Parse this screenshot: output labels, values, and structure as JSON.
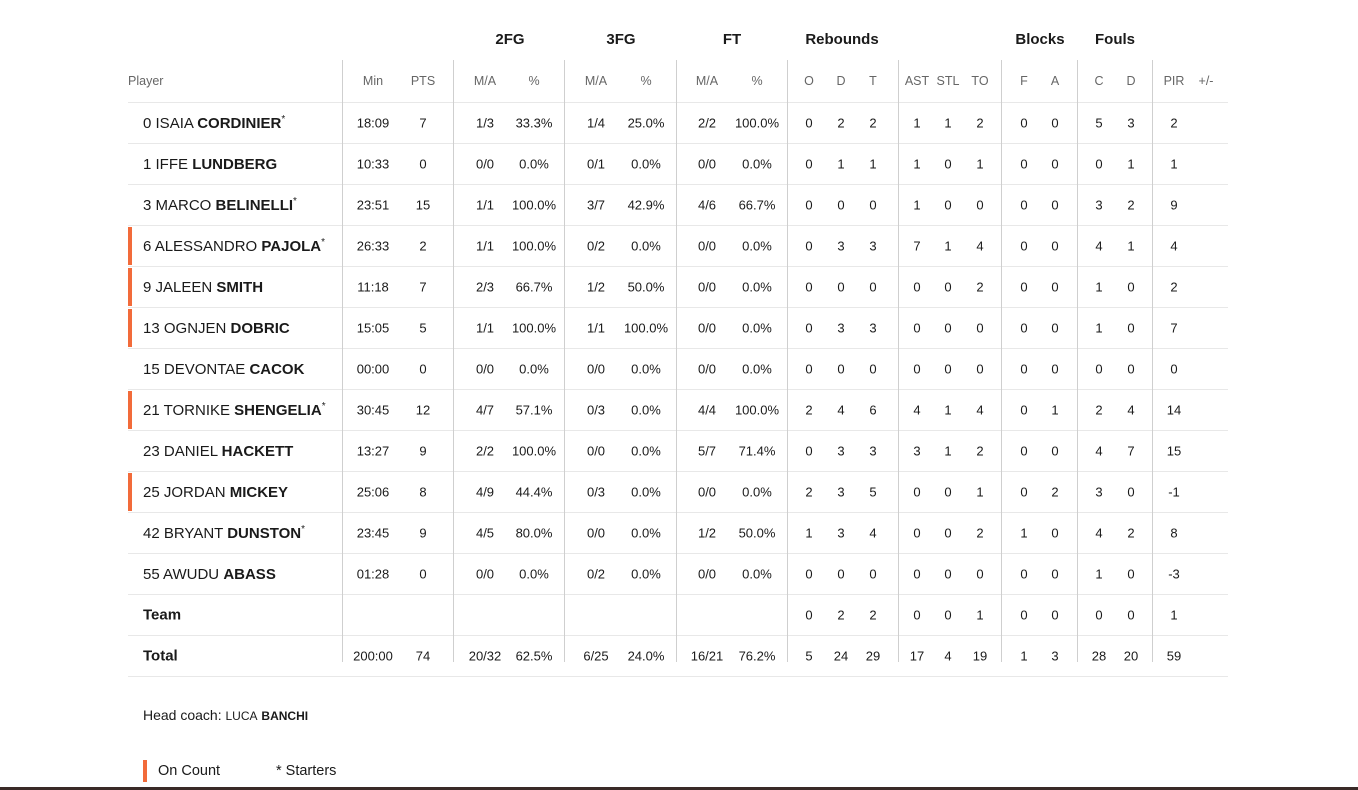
{
  "groups": {
    "fg2": "2FG",
    "fg3": "3FG",
    "ft": "FT",
    "reb": "Rebounds",
    "blocks": "Blocks",
    "fouls": "Fouls"
  },
  "headers": {
    "player": "Player",
    "min": "Min",
    "pts": "PTS",
    "fg2_ma": "M/A",
    "fg2_pct": "%",
    "fg3_ma": "M/A",
    "fg3_pct": "%",
    "ft_ma": "M/A",
    "ft_pct": "%",
    "o": "O",
    "d": "D",
    "t": "T",
    "ast": "AST",
    "stl": "STL",
    "to": "TO",
    "bf": "F",
    "ba": "A",
    "fc": "C",
    "fd": "D",
    "pir": "PIR",
    "pm": "+/-"
  },
  "players": [
    {
      "num": "0",
      "first": "ISAIA",
      "last": "CORDINIER",
      "star": "*",
      "oncourt": false,
      "min": "18:09",
      "pts": "7",
      "fg2_ma": "1/3",
      "fg2_pct": "33.3%",
      "fg3_ma": "1/4",
      "fg3_pct": "25.0%",
      "ft_ma": "2/2",
      "ft_pct": "100.0%",
      "o": "0",
      "d": "2",
      "t": "2",
      "ast": "1",
      "stl": "1",
      "to": "2",
      "bf": "0",
      "ba": "0",
      "fc": "5",
      "fd": "3",
      "pir": "2",
      "pm": ""
    },
    {
      "num": "1",
      "first": "IFFE",
      "last": "LUNDBERG",
      "star": "",
      "oncourt": false,
      "min": "10:33",
      "pts": "0",
      "fg2_ma": "0/0",
      "fg2_pct": "0.0%",
      "fg3_ma": "0/1",
      "fg3_pct": "0.0%",
      "ft_ma": "0/0",
      "ft_pct": "0.0%",
      "o": "0",
      "d": "1",
      "t": "1",
      "ast": "1",
      "stl": "0",
      "to": "1",
      "bf": "0",
      "ba": "0",
      "fc": "0",
      "fd": "1",
      "pir": "1",
      "pm": ""
    },
    {
      "num": "3",
      "first": "MARCO",
      "last": "BELINELLI",
      "star": "*",
      "oncourt": false,
      "min": "23:51",
      "pts": "15",
      "fg2_ma": "1/1",
      "fg2_pct": "100.0%",
      "fg3_ma": "3/7",
      "fg3_pct": "42.9%",
      "ft_ma": "4/6",
      "ft_pct": "66.7%",
      "o": "0",
      "d": "0",
      "t": "0",
      "ast": "1",
      "stl": "0",
      "to": "0",
      "bf": "0",
      "ba": "0",
      "fc": "3",
      "fd": "2",
      "pir": "9",
      "pm": ""
    },
    {
      "num": "6",
      "first": "ALESSANDRO",
      "last": "PAJOLA",
      "star": "*",
      "oncourt": true,
      "min": "26:33",
      "pts": "2",
      "fg2_ma": "1/1",
      "fg2_pct": "100.0%",
      "fg3_ma": "0/2",
      "fg3_pct": "0.0%",
      "ft_ma": "0/0",
      "ft_pct": "0.0%",
      "o": "0",
      "d": "3",
      "t": "3",
      "ast": "7",
      "stl": "1",
      "to": "4",
      "bf": "0",
      "ba": "0",
      "fc": "4",
      "fd": "1",
      "pir": "4",
      "pm": ""
    },
    {
      "num": "9",
      "first": "JALEEN",
      "last": "SMITH",
      "star": "",
      "oncourt": true,
      "min": "11:18",
      "pts": "7",
      "fg2_ma": "2/3",
      "fg2_pct": "66.7%",
      "fg3_ma": "1/2",
      "fg3_pct": "50.0%",
      "ft_ma": "0/0",
      "ft_pct": "0.0%",
      "o": "0",
      "d": "0",
      "t": "0",
      "ast": "0",
      "stl": "0",
      "to": "2",
      "bf": "0",
      "ba": "0",
      "fc": "1",
      "fd": "0",
      "pir": "2",
      "pm": ""
    },
    {
      "num": "13",
      "first": "OGNJEN",
      "last": "DOBRIC",
      "star": "",
      "oncourt": true,
      "min": "15:05",
      "pts": "5",
      "fg2_ma": "1/1",
      "fg2_pct": "100.0%",
      "fg3_ma": "1/1",
      "fg3_pct": "100.0%",
      "ft_ma": "0/0",
      "ft_pct": "0.0%",
      "o": "0",
      "d": "3",
      "t": "3",
      "ast": "0",
      "stl": "0",
      "to": "0",
      "bf": "0",
      "ba": "0",
      "fc": "1",
      "fd": "0",
      "pir": "7",
      "pm": ""
    },
    {
      "num": "15",
      "first": "DEVONTAE",
      "last": "CACOK",
      "star": "",
      "oncourt": false,
      "min": "00:00",
      "pts": "0",
      "fg2_ma": "0/0",
      "fg2_pct": "0.0%",
      "fg3_ma": "0/0",
      "fg3_pct": "0.0%",
      "ft_ma": "0/0",
      "ft_pct": "0.0%",
      "o": "0",
      "d": "0",
      "t": "0",
      "ast": "0",
      "stl": "0",
      "to": "0",
      "bf": "0",
      "ba": "0",
      "fc": "0",
      "fd": "0",
      "pir": "0",
      "pm": ""
    },
    {
      "num": "21",
      "first": "TORNIKE",
      "last": "SHENGELIA",
      "star": "*",
      "oncourt": true,
      "min": "30:45",
      "pts": "12",
      "fg2_ma": "4/7",
      "fg2_pct": "57.1%",
      "fg3_ma": "0/3",
      "fg3_pct": "0.0%",
      "ft_ma": "4/4",
      "ft_pct": "100.0%",
      "o": "2",
      "d": "4",
      "t": "6",
      "ast": "4",
      "stl": "1",
      "to": "4",
      "bf": "0",
      "ba": "1",
      "fc": "2",
      "fd": "4",
      "pir": "14",
      "pm": ""
    },
    {
      "num": "23",
      "first": "DANIEL",
      "last": "HACKETT",
      "star": "",
      "oncourt": false,
      "min": "13:27",
      "pts": "9",
      "fg2_ma": "2/2",
      "fg2_pct": "100.0%",
      "fg3_ma": "0/0",
      "fg3_pct": "0.0%",
      "ft_ma": "5/7",
      "ft_pct": "71.4%",
      "o": "0",
      "d": "3",
      "t": "3",
      "ast": "3",
      "stl": "1",
      "to": "2",
      "bf": "0",
      "ba": "0",
      "fc": "4",
      "fd": "7",
      "pir": "15",
      "pm": ""
    },
    {
      "num": "25",
      "first": "JORDAN",
      "last": "MICKEY",
      "star": "",
      "oncourt": true,
      "min": "25:06",
      "pts": "8",
      "fg2_ma": "4/9",
      "fg2_pct": "44.4%",
      "fg3_ma": "0/3",
      "fg3_pct": "0.0%",
      "ft_ma": "0/0",
      "ft_pct": "0.0%",
      "o": "2",
      "d": "3",
      "t": "5",
      "ast": "0",
      "stl": "0",
      "to": "1",
      "bf": "0",
      "ba": "2",
      "fc": "3",
      "fd": "0",
      "pir": "-1",
      "pm": ""
    },
    {
      "num": "42",
      "first": "BRYANT",
      "last": "DUNSTON",
      "star": "*",
      "oncourt": false,
      "min": "23:45",
      "pts": "9",
      "fg2_ma": "4/5",
      "fg2_pct": "80.0%",
      "fg3_ma": "0/0",
      "fg3_pct": "0.0%",
      "ft_ma": "1/2",
      "ft_pct": "50.0%",
      "o": "1",
      "d": "3",
      "t": "4",
      "ast": "0",
      "stl": "0",
      "to": "2",
      "bf": "1",
      "ba": "0",
      "fc": "4",
      "fd": "2",
      "pir": "8",
      "pm": ""
    },
    {
      "num": "55",
      "first": "AWUDU",
      "last": "ABASS",
      "star": "",
      "oncourt": false,
      "min": "01:28",
      "pts": "0",
      "fg2_ma": "0/0",
      "fg2_pct": "0.0%",
      "fg3_ma": "0/2",
      "fg3_pct": "0.0%",
      "ft_ma": "0/0",
      "ft_pct": "0.0%",
      "o": "0",
      "d": "0",
      "t": "0",
      "ast": "0",
      "stl": "0",
      "to": "0",
      "bf": "0",
      "ba": "0",
      "fc": "1",
      "fd": "0",
      "pir": "-3",
      "pm": ""
    }
  ],
  "team_row": {
    "label": "Team",
    "o": "0",
    "d": "2",
    "t": "2",
    "ast": "0",
    "stl": "0",
    "to": "1",
    "bf": "0",
    "ba": "0",
    "fc": "0",
    "fd": "0",
    "pir": "1"
  },
  "total_row": {
    "label": "Total",
    "min": "200:00",
    "pts": "74",
    "fg2_ma": "20/32",
    "fg2_pct": "62.5%",
    "fg3_ma": "6/25",
    "fg3_pct": "24.0%",
    "ft_ma": "16/21",
    "ft_pct": "76.2%",
    "o": "5",
    "d": "24",
    "t": "29",
    "ast": "17",
    "stl": "4",
    "to": "19",
    "bf": "1",
    "ba": "3",
    "fc": "28",
    "fd": "20",
    "pir": "59"
  },
  "coach": {
    "label": "Head coach:",
    "first": "LUCA",
    "last": "BANCHI"
  },
  "legend": {
    "oncourt": "On Count",
    "starters": "* Starters"
  },
  "colors": {
    "oncourt_accent": "#f26b3a"
  }
}
